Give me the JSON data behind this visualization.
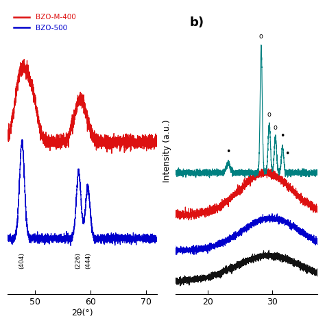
{
  "panel_a": {
    "xlim": [
      45,
      72
    ],
    "xticks": [
      50,
      60,
      70
    ],
    "xlabel": "2θ(°)",
    "red_color": "#dd1111",
    "blue_color": "#0000cc",
    "legend_labels": [
      "BZO-M-400",
      "BZO-500"
    ],
    "annot_404": {
      "text": "(404)",
      "x": 47.6,
      "rot": 90
    },
    "annot_226": {
      "text": "(226)",
      "x": 57.8,
      "rot": 90
    },
    "annot_444": {
      "text": "(444)",
      "x": 59.6,
      "rot": 90
    }
  },
  "panel_b": {
    "xlim": [
      15,
      37
    ],
    "xticks": [
      20,
      30
    ],
    "ylabel": "Intensity (a.u.)",
    "label": "b)",
    "teal_color": "#008080",
    "red_color": "#dd1111",
    "blue_color": "#0000cc",
    "black_color": "#111111"
  }
}
